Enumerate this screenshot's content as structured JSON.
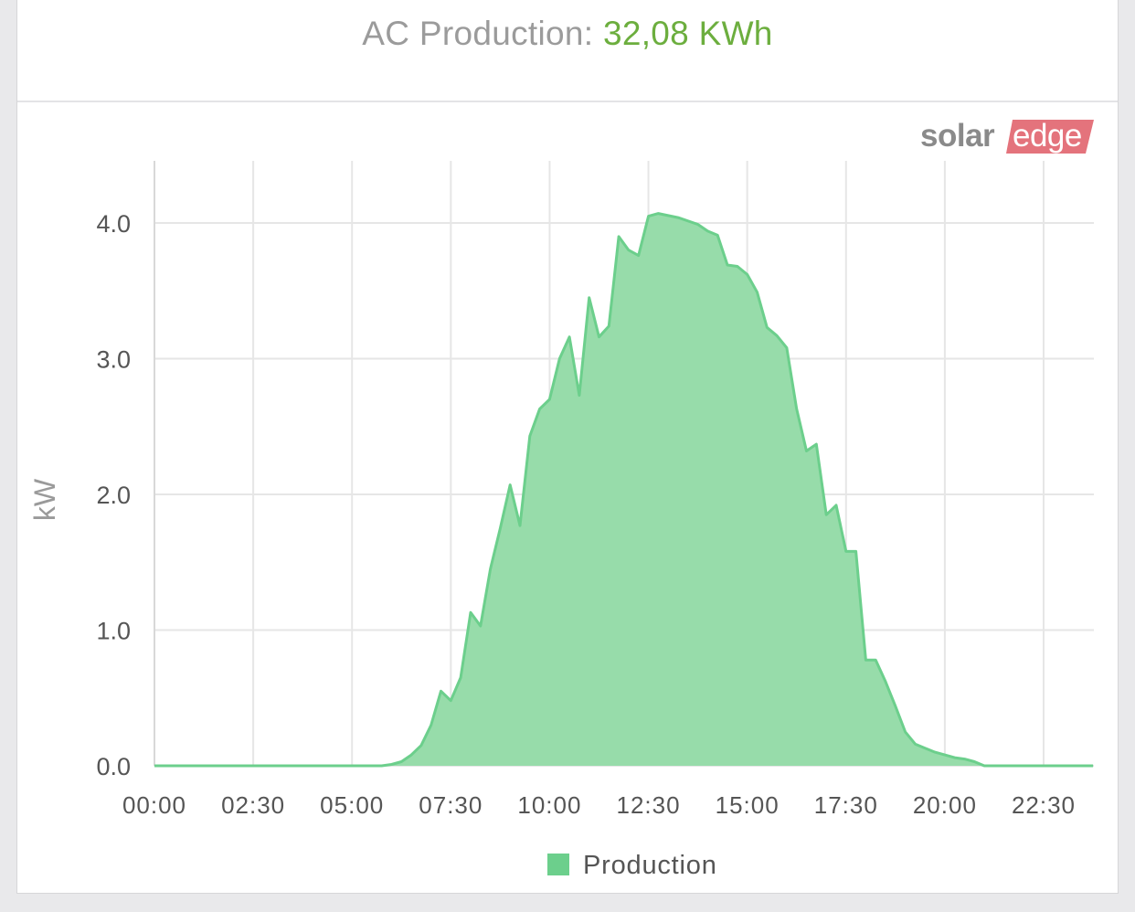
{
  "header": {
    "label": "AC Production:",
    "value": "32,08 KWh",
    "value_color": "#6cae3e"
  },
  "logo": {
    "text_main": "solar",
    "text_accent": "edge",
    "accent_color": "#e4737c",
    "main_color": "#8a8a8a"
  },
  "chart_data": {
    "type": "area",
    "title": "",
    "xlabel": "",
    "ylabel": "kW",
    "x_ticks": [
      "00:00",
      "02:30",
      "05:00",
      "07:30",
      "10:00",
      "12:30",
      "15:00",
      "17:30",
      "20:00",
      "22:30"
    ],
    "y_ticks": [
      "0.0",
      "1.0",
      "2.0",
      "3.0",
      "4.0"
    ],
    "ylim": [
      0,
      4.5
    ],
    "grid": true,
    "legend_position": "bottom",
    "colors": {
      "fill": "#97dcaa",
      "stroke": "#6ccf8c",
      "legend": "#6ccf8c"
    },
    "series": [
      {
        "name": "Production",
        "points": [
          [
            "00:00",
            0.0
          ],
          [
            "05:45",
            0.0
          ],
          [
            "06:00",
            0.01
          ],
          [
            "06:15",
            0.03
          ],
          [
            "06:30",
            0.08
          ],
          [
            "06:45",
            0.15
          ],
          [
            "07:00",
            0.3
          ],
          [
            "07:15",
            0.55
          ],
          [
            "07:30",
            0.48
          ],
          [
            "07:45",
            0.65
          ],
          [
            "08:00",
            1.13
          ],
          [
            "08:15",
            1.03
          ],
          [
            "08:30",
            1.45
          ],
          [
            "08:45",
            1.75
          ],
          [
            "09:00",
            2.07
          ],
          [
            "09:15",
            1.77
          ],
          [
            "09:30",
            2.43
          ],
          [
            "09:45",
            2.63
          ],
          [
            "10:00",
            2.7
          ],
          [
            "10:15",
            3.0
          ],
          [
            "10:30",
            3.16
          ],
          [
            "10:45",
            2.73
          ],
          [
            "11:00",
            3.45
          ],
          [
            "11:15",
            3.16
          ],
          [
            "11:30",
            3.24
          ],
          [
            "11:45",
            3.9
          ],
          [
            "12:00",
            3.8
          ],
          [
            "12:15",
            3.76
          ],
          [
            "12:30",
            4.05
          ],
          [
            "12:45",
            4.07
          ],
          [
            "13:15",
            4.04
          ],
          [
            "13:45",
            3.99
          ],
          [
            "14:00",
            3.94
          ],
          [
            "14:15",
            3.91
          ],
          [
            "14:30",
            3.69
          ],
          [
            "14:45",
            3.68
          ],
          [
            "15:00",
            3.62
          ],
          [
            "15:15",
            3.49
          ],
          [
            "15:30",
            3.23
          ],
          [
            "15:45",
            3.17
          ],
          [
            "16:00",
            3.08
          ],
          [
            "16:15",
            2.63
          ],
          [
            "16:30",
            2.32
          ],
          [
            "16:45",
            2.37
          ],
          [
            "17:00",
            1.85
          ],
          [
            "17:15",
            1.92
          ],
          [
            "17:30",
            1.58
          ],
          [
            "17:45",
            1.58
          ],
          [
            "18:00",
            0.78
          ],
          [
            "18:15",
            0.78
          ],
          [
            "18:30",
            0.62
          ],
          [
            "18:45",
            0.44
          ],
          [
            "19:00",
            0.25
          ],
          [
            "19:15",
            0.16
          ],
          [
            "19:30",
            0.13
          ],
          [
            "19:45",
            0.1
          ],
          [
            "20:00",
            0.08
          ],
          [
            "20:15",
            0.06
          ],
          [
            "20:30",
            0.05
          ],
          [
            "20:45",
            0.03
          ],
          [
            "21:00",
            0.0
          ],
          [
            "23:45",
            0.0
          ]
        ]
      }
    ]
  }
}
